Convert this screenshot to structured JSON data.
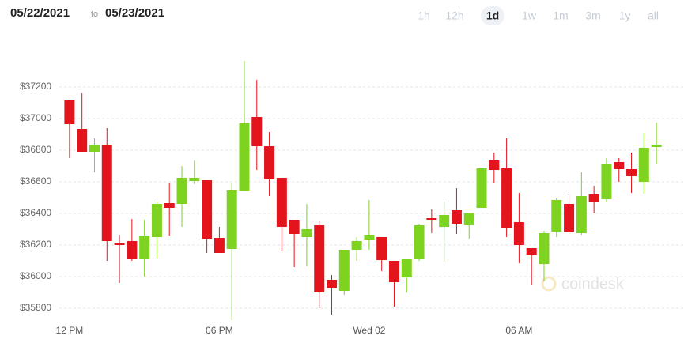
{
  "chart_data": {
    "type": "candlestick",
    "date_range": {
      "from": "05/22/2021",
      "separator": "to",
      "to": "05/23/2021"
    },
    "ranges": [
      "1h",
      "12h",
      "1d",
      "1w",
      "1m",
      "3m",
      "1y",
      "all"
    ],
    "active_range": "1d",
    "watermark": "coindesk",
    "categories": [
      "12 PM",
      null,
      null,
      null,
      null,
      null,
      null,
      null,
      null,
      null,
      null,
      null,
      "06 PM",
      null,
      null,
      null,
      null,
      null,
      null,
      null,
      null,
      null,
      null,
      null,
      "Wed 02",
      null,
      null,
      null,
      null,
      null,
      null,
      null,
      null,
      null,
      null,
      null,
      "06 AM",
      null,
      null,
      null,
      null,
      null,
      null,
      null,
      null,
      null,
      null,
      null
    ],
    "up_color": "#7ed321",
    "down_color": "#e3141c",
    "open": [
      37115,
      36935,
      36790,
      36835,
      36210,
      36225,
      36110,
      36250,
      36465,
      36460,
      36605,
      36610,
      36245,
      36175,
      36540,
      37010,
      36825,
      36625,
      36360,
      36250,
      36325,
      35980,
      35910,
      36170,
      36235,
      36250,
      36100,
      35995,
      36110,
      36370,
      36315,
      36420,
      36325,
      36435,
      36735,
      36685,
      36345,
      36180,
      36080,
      36285,
      36460,
      36275,
      36520,
      36490,
      36725,
      36680,
      36600,
      36820
    ],
    "high": [
      37115,
      37160,
      36875,
      36940,
      36265,
      36365,
      36360,
      36475,
      36590,
      36700,
      36735,
      36610,
      36315,
      36590,
      37365,
      37245,
      36915,
      36625,
      36360,
      36460,
      36350,
      36010,
      36170,
      36250,
      36485,
      36250,
      36100,
      36110,
      36335,
      36425,
      36475,
      36560,
      36400,
      36685,
      36785,
      36875,
      36530,
      36180,
      36290,
      36500,
      36520,
      36660,
      36575,
      36750,
      36750,
      36785,
      36910,
      36975
    ],
    "low": [
      36750,
      36790,
      36660,
      36100,
      35960,
      36100,
      36000,
      36115,
      36260,
      36315,
      36585,
      36150,
      36150,
      35725,
      36540,
      36675,
      36510,
      36160,
      36060,
      36065,
      35800,
      35760,
      35885,
      36100,
      36170,
      36035,
      35810,
      35900,
      36100,
      36275,
      36095,
      36270,
      36240,
      36435,
      36590,
      36250,
      36085,
      35950,
      35970,
      36250,
      36270,
      36265,
      36400,
      36475,
      36600,
      36530,
      36525,
      36710
    ],
    "close": [
      36965,
      36790,
      36835,
      36225,
      36200,
      36110,
      36260,
      36460,
      36435,
      36625,
      36625,
      36240,
      36150,
      36545,
      36970,
      36825,
      36615,
      36315,
      36270,
      36300,
      35900,
      35930,
      36170,
      36225,
      36265,
      36105,
      35965,
      36110,
      36325,
      36360,
      36390,
      36335,
      36400,
      36685,
      36675,
      36310,
      36200,
      36135,
      36275,
      36485,
      36285,
      36510,
      36470,
      36710,
      36680,
      36635,
      36815,
      36835
    ],
    "ylim": [
      35725,
      37450
    ],
    "yticks": [
      {
        "value": 35800,
        "label": "$35800"
      },
      {
        "value": 36000,
        "label": "$36000"
      },
      {
        "value": 36200,
        "label": "$36200"
      },
      {
        "value": 36400,
        "label": "$36400"
      },
      {
        "value": 36600,
        "label": "$36600"
      },
      {
        "value": 36800,
        "label": "$36800"
      },
      {
        "value": 37000,
        "label": "$37000"
      },
      {
        "value": 37200,
        "label": "$37200"
      }
    ],
    "grid": true
  }
}
